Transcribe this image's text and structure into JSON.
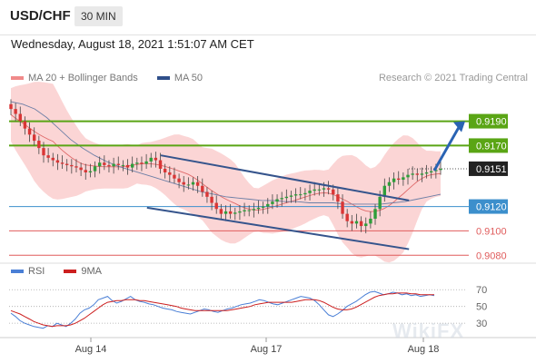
{
  "header": {
    "symbol": "USD/CHF",
    "timeframe": "30 MIN"
  },
  "datetime": "Wednesday, August 18, 2021 1:51:07 AM CET",
  "legend": [
    {
      "label": "MA 20 + Bollinger Bands",
      "color": "#f08a8a"
    },
    {
      "label": "MA 50",
      "color": "#2f4f8a"
    }
  ],
  "credit": "Research © 2021 Trading Central",
  "rsi_legend": [
    {
      "label": "RSI",
      "color": "#4a7fd6"
    },
    {
      "label": "9MA",
      "color": "#cc1f1f"
    }
  ],
  "colors": {
    "candle_up": "#2e9e3a",
    "candle_down": "#d93535",
    "wick": "#444444",
    "resistance": "#5aa515",
    "support": "#3c8fcc",
    "support_red": "#e05c5c",
    "channel": "#35548c",
    "band_fill": "#f9c7c7",
    "arrow": "#2a63b3"
  },
  "chart_data": [
    {
      "type": "candlestick",
      "x_ticks": [
        "Aug 14",
        "Aug 17",
        "Aug 18"
      ],
      "ylim": [
        0.9075,
        0.9215
      ],
      "price_levels": [
        {
          "value": "0.9190",
          "style": "resistance"
        },
        {
          "value": "0.9170",
          "style": "resistance"
        },
        {
          "value": "0.9151",
          "style": "current"
        },
        {
          "value": "0.9120",
          "style": "support"
        },
        {
          "value": "0.9100",
          "style": "support_red"
        },
        {
          "value": "0.9080",
          "style": "support_red"
        }
      ],
      "close_series": [
        0.92,
        0.9196,
        0.919,
        0.9184,
        0.9179,
        0.9174,
        0.9168,
        0.9162,
        0.916,
        0.9158,
        0.9156,
        0.9155,
        0.9154,
        0.9153,
        0.9152,
        0.915,
        0.9148,
        0.9149,
        0.9153,
        0.9156,
        0.9154,
        0.9153,
        0.9155,
        0.9154,
        0.9154,
        0.9152,
        0.9155,
        0.9156,
        0.9155,
        0.9157,
        0.916,
        0.9158,
        0.9151,
        0.9148,
        0.9146,
        0.9143,
        0.914,
        0.9138,
        0.9138,
        0.914,
        0.9137,
        0.9132,
        0.9128,
        0.9123,
        0.9118,
        0.9114,
        0.9116,
        0.9114,
        0.9115,
        0.9116,
        0.9117,
        0.9117,
        0.9118,
        0.9119,
        0.912,
        0.9122,
        0.9124,
        0.9126,
        0.9127,
        0.9128,
        0.9129,
        0.913,
        0.913,
        0.9131,
        0.9133,
        0.9134,
        0.9134,
        0.9135,
        0.9134,
        0.913,
        0.9124,
        0.9114,
        0.9108,
        0.9106,
        0.9108,
        0.9104,
        0.9106,
        0.911,
        0.9118,
        0.9128,
        0.9137,
        0.914,
        0.9143,
        0.9142,
        0.9144,
        0.9146,
        0.9147,
        0.9146,
        0.9147,
        0.9148,
        0.9149,
        0.915,
        0.9151
      ],
      "ma50_series": [
        0.9206,
        0.9204,
        0.92,
        0.9193,
        0.9184,
        0.9175,
        0.9168,
        0.9162,
        0.9157,
        0.9153,
        0.915,
        0.9147,
        0.9144,
        0.9141,
        0.9138,
        0.9135,
        0.9132,
        0.913,
        0.9128,
        0.9127,
        0.9126,
        0.9125,
        0.9125,
        0.9124,
        0.9124,
        0.9123,
        0.9123,
        0.9123,
        0.9122,
        0.9122,
        0.9122,
        0.9122,
        0.9123,
        0.9124,
        0.9126,
        0.9128,
        0.913
      ],
      "channel_upper": [
        [
          0.9162,
          0.33
        ],
        [
          0.9125,
          0.87
        ]
      ],
      "channel_lower": [
        [
          0.9119,
          0.3
        ],
        [
          0.9085,
          0.87
        ]
      ],
      "arrow_target": "0.9190"
    },
    {
      "type": "line",
      "title": "RSI",
      "ylim": [
        15,
        80
      ],
      "y_levels": [
        "70",
        "50",
        "30"
      ],
      "rsi_series": [
        42,
        38,
        33,
        30,
        28,
        26,
        25,
        24,
        27,
        26,
        30,
        28,
        26,
        30,
        35,
        42,
        46,
        48,
        52,
        58,
        60,
        62,
        57,
        54,
        56,
        59,
        62,
        58,
        56,
        55,
        53,
        52,
        50,
        48,
        47,
        46,
        44,
        43,
        42,
        41,
        43,
        45,
        47,
        46,
        44,
        43,
        45,
        47,
        48,
        50,
        52,
        53,
        54,
        56,
        58,
        57,
        55,
        53,
        52,
        54,
        56,
        58,
        60,
        62,
        61,
        60,
        57,
        52,
        46,
        40,
        38,
        41,
        45,
        50,
        53,
        56,
        60,
        64,
        67,
        68,
        66,
        64,
        65,
        67,
        66,
        64,
        65,
        63,
        64,
        62,
        63,
        64,
        63
      ],
      "ma9_series": [
        45,
        43,
        41,
        38,
        35,
        32,
        30,
        28,
        27,
        26,
        27,
        27,
        27,
        28,
        30,
        33,
        36,
        40,
        44,
        48,
        52,
        55,
        56,
        57,
        57,
        58,
        58,
        58,
        57,
        57,
        56,
        55,
        54,
        53,
        52,
        51,
        50,
        48,
        47,
        46,
        45,
        45,
        45,
        45,
        45,
        45,
        45,
        45,
        46,
        47,
        48,
        49,
        50,
        52,
        53,
        54,
        55,
        55,
        55,
        55,
        55,
        55,
        56,
        57,
        58,
        58,
        58,
        57,
        55,
        52,
        49,
        47,
        46,
        46,
        47,
        49,
        52,
        55,
        58,
        61,
        63,
        64,
        65,
        65,
        66,
        66,
        66,
        65,
        65,
        64,
        64,
        64,
        64
      ]
    }
  ]
}
